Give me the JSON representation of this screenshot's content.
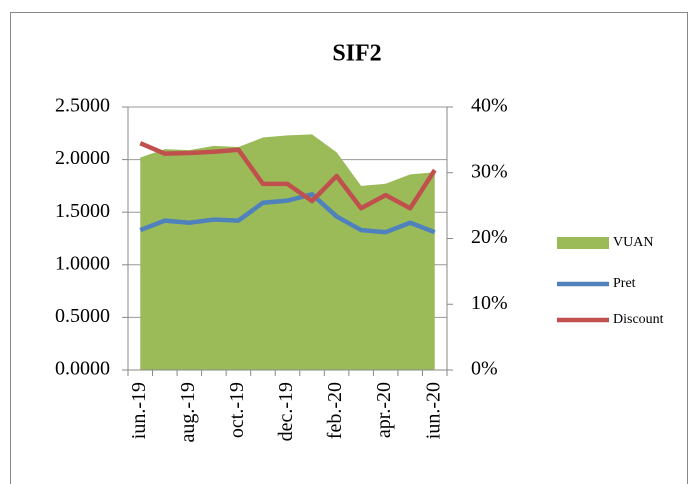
{
  "chart_data": {
    "type": "combo",
    "title": "SIF2",
    "categories": [
      "iun.-19",
      null,
      "aug.-19",
      null,
      "oct.-19",
      null,
      "dec.-19",
      null,
      "feb.-20",
      null,
      "apr.-20",
      null,
      "iun.-20"
    ],
    "series": [
      {
        "name": "VUAN",
        "type": "area",
        "color": "#9bbb59",
        "axis": "y",
        "values": [
          2.02,
          2.1,
          2.09,
          2.13,
          2.12,
          2.21,
          2.23,
          2.24,
          2.07,
          1.75,
          1.77,
          1.86,
          1.88
        ]
      },
      {
        "name": "Pret",
        "type": "line",
        "color": "#4f81bd",
        "axis": "y",
        "values": [
          1.33,
          1.42,
          1.4,
          1.43,
          1.42,
          1.59,
          1.61,
          1.67,
          1.46,
          1.33,
          1.31,
          1.4,
          1.31
        ]
      },
      {
        "name": "Discount",
        "type": "line",
        "color": "#c0504d",
        "axis": "y2",
        "values": [
          34.5,
          32.9,
          33.0,
          33.2,
          33.5,
          28.3,
          28.3,
          25.7,
          29.5,
          24.6,
          26.6,
          24.6,
          30.4
        ]
      }
    ],
    "ylim": [
      0,
      2.5
    ],
    "yticks": [
      {
        "value": 0,
        "label": "0.0000"
      },
      {
        "value": 0.5,
        "label": "0.5000"
      },
      {
        "value": 1,
        "label": "1.0000"
      },
      {
        "value": 1.5,
        "label": "1.5000"
      },
      {
        "value": 2,
        "label": "2.0000"
      },
      {
        "value": 2.5,
        "label": "2.5000"
      }
    ],
    "y2lim": [
      0,
      40
    ],
    "y2ticks": [
      {
        "value": 0,
        "label": "0%"
      },
      {
        "value": 10,
        "label": "10%"
      },
      {
        "value": 20,
        "label": "20%"
      },
      {
        "value": 30,
        "label": "30%"
      },
      {
        "value": 40,
        "label": "40%"
      }
    ],
    "grid": true,
    "legend": "right"
  }
}
